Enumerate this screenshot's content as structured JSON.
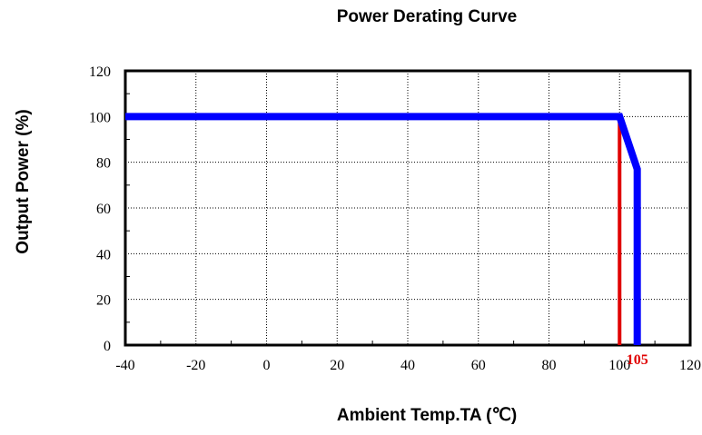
{
  "chart_data": {
    "type": "line",
    "title": "Power Derating Curve",
    "xlabel": "Ambient Temp.TA (℃)",
    "ylabel": "Output Power (%)",
    "xlim": [
      -40,
      120
    ],
    "ylim": [
      0,
      120
    ],
    "xticks": [
      -40,
      -20,
      0,
      20,
      40,
      60,
      80,
      100,
      120
    ],
    "yticks": [
      0,
      20,
      40,
      60,
      80,
      100,
      120
    ],
    "grid": true,
    "series": [
      {
        "color": "#0000ff",
        "x": [
          -40,
          100,
          105,
          105
        ],
        "y": [
          100,
          100,
          77,
          0
        ]
      }
    ],
    "markers": [
      {
        "x": 100,
        "color": "#e00000"
      }
    ],
    "annotation": {
      "text": "105",
      "x": 105,
      "color": "#e00000"
    }
  }
}
